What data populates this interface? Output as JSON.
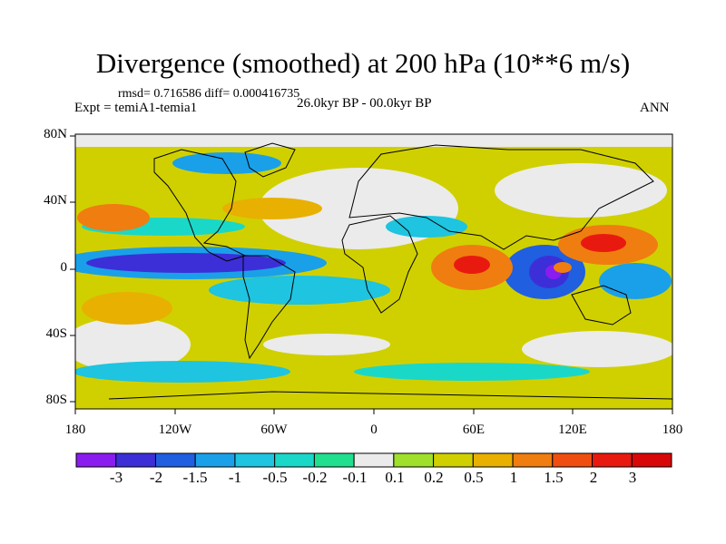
{
  "title": "Divergence (smoothed) at 200 hPa (10**6 m/s)",
  "stats": "rmsd= 0.716586 diff= 0.000416735",
  "experiment": "Expt = temiA1-temia1",
  "period": "26.0kyr BP - 00.0kyr BP",
  "season": "ANN",
  "lat_labels": [
    "80N",
    "40N",
    "0",
    "40S",
    "80S"
  ],
  "lon_labels": [
    "180",
    "120W",
    "60W",
    "0",
    "60E",
    "120E",
    "180"
  ],
  "colorbar": {
    "labels": [
      "-3",
      "-2",
      "-1.5",
      "-1",
      "-0.5",
      "-0.2",
      "-0.1",
      "0.1",
      "0.2",
      "0.5",
      "1",
      "1.5",
      "2",
      "3"
    ],
    "colors": [
      "#8a1cf0",
      "#3c2fd8",
      "#1f5fe0",
      "#1aa0e8",
      "#1ec4e0",
      "#1ad8c8",
      "#20e090",
      "#ebebeb",
      "#9ee02a",
      "#d0d000",
      "#e8b000",
      "#f07d10",
      "#f04e10",
      "#e81a10",
      "#d80808"
    ]
  }
}
